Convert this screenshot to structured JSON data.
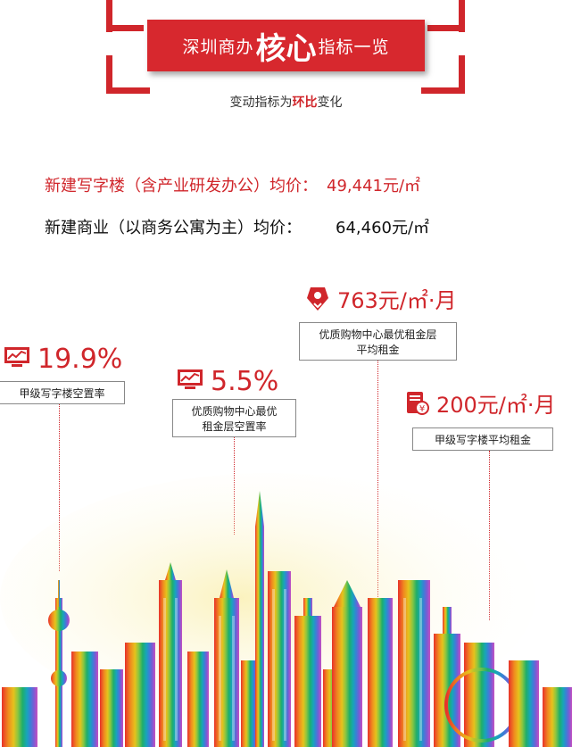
{
  "header": {
    "title_prefix": "深圳商办",
    "title_big": "核心",
    "title_suffix": "指标一览",
    "subtitle_pre": "变动指标为",
    "subtitle_em": "环比",
    "subtitle_post": "变化"
  },
  "prices": [
    {
      "label": "新建写字楼（含产业研发办公）均价：",
      "value": "49,441元/㎡",
      "color": "#d0262b"
    },
    {
      "label": "新建商业（以商务公寓为主）均价：",
      "value": "64,460元/㎡",
      "color": "#111111"
    }
  ],
  "metrics": [
    {
      "value": "19.9%",
      "caption": "甲级写字楼空置率",
      "icon": "chart-monitor-icon"
    },
    {
      "value": "5.5%",
      "caption_line1": "优质购物中心最优",
      "caption_line2": "租金层空置率",
      "icon": "chart-monitor-icon"
    },
    {
      "value": "763元/㎡·月",
      "caption_line1": "优质购物中心最优租金层",
      "caption_line2": "平均租金",
      "icon": "shopping-tag-icon"
    },
    {
      "value": "200元/㎡·月",
      "caption": "甲级写字楼平均租金",
      "icon": "document-money-icon"
    }
  ],
  "colors": {
    "accent": "#d0262b"
  }
}
